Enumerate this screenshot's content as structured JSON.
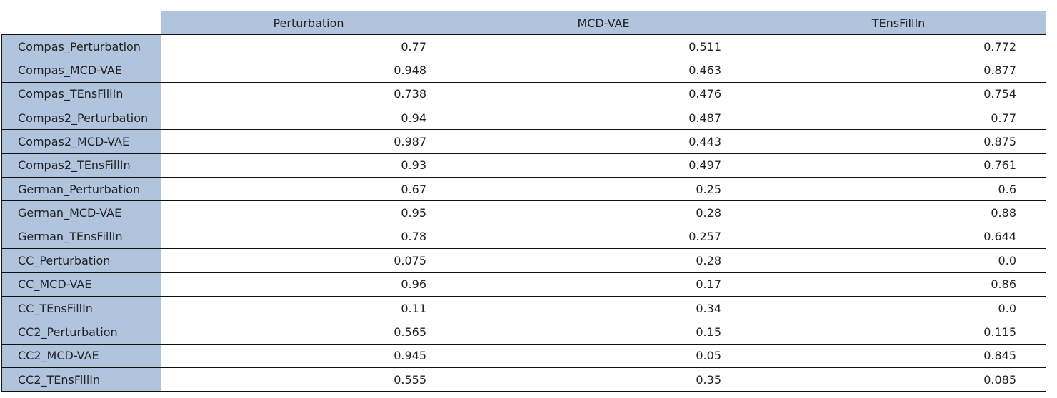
{
  "table": {
    "columns": [
      "Perturbation",
      "MCD-VAE",
      "TEnsFillIn"
    ],
    "rows": [
      {
        "label": "Compas_Perturbation",
        "values": [
          "0.77",
          "0.511",
          "0.772"
        ]
      },
      {
        "label": "Compas_MCD-VAE",
        "values": [
          "0.948",
          "0.463",
          "0.877"
        ]
      },
      {
        "label": "Compas_TEnsFillIn",
        "values": [
          "0.738",
          "0.476",
          "0.754"
        ]
      },
      {
        "label": "Compas2_Perturbation",
        "values": [
          "0.94",
          "0.487",
          "0.77"
        ]
      },
      {
        "label": "Compas2_MCD-VAE",
        "values": [
          "0.987",
          "0.443",
          "0.875"
        ]
      },
      {
        "label": "Compas2_TEnsFillIn",
        "values": [
          "0.93",
          "0.497",
          "0.761"
        ]
      },
      {
        "label": "German_Perturbation",
        "values": [
          "0.67",
          "0.25",
          "0.6"
        ]
      },
      {
        "label": "German_MCD-VAE",
        "values": [
          "0.95",
          "0.28",
          "0.88"
        ]
      },
      {
        "label": "German_TEnsFillIn",
        "values": [
          "0.78",
          "0.257",
          "0.644"
        ]
      },
      {
        "label": "CC_Perturbation",
        "values": [
          "0.075",
          "0.28",
          "0.0"
        ]
      },
      {
        "label": "CC_MCD-VAE",
        "values": [
          "0.96",
          "0.17",
          "0.86"
        ]
      },
      {
        "label": "CC_TEnsFillIn",
        "values": [
          "0.11",
          "0.34",
          "0.0"
        ]
      },
      {
        "label": "CC2_Perturbation",
        "values": [
          "0.565",
          "0.15",
          "0.115"
        ]
      },
      {
        "label": "CC2_MCD-VAE",
        "values": [
          "0.945",
          "0.05",
          "0.845"
        ]
      },
      {
        "label": "CC2_TEnsFillIn",
        "values": [
          "0.555",
          "0.35",
          "0.085"
        ]
      }
    ]
  }
}
